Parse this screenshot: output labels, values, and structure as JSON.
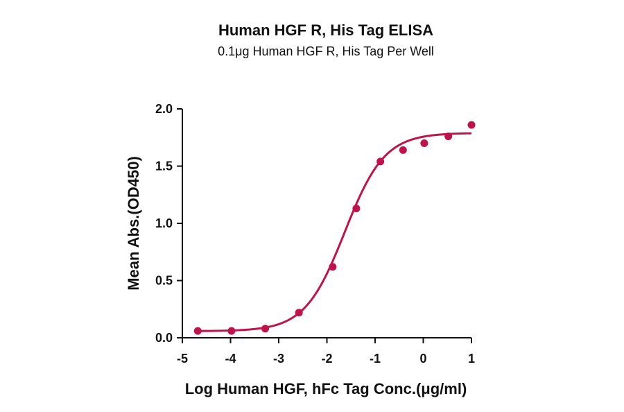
{
  "chart_data": {
    "type": "scatter",
    "title": "Human HGF R, His Tag ELISA",
    "subtitle": "0.1μg Human HGF R, His Tag Per Well",
    "xlabel": "Log Human HGF, hFc Tag Conc.(μg/ml)",
    "ylabel": "Mean Abs.(OD450)",
    "xlim": [
      -5,
      1
    ],
    "ylim": [
      0,
      2.0
    ],
    "x_ticks": [
      "-5",
      "-4",
      "-3",
      "-2",
      "-1",
      "0",
      "1"
    ],
    "y_ticks": [
      "0.0",
      "0.5",
      "1.0",
      "1.5",
      "2.0"
    ],
    "grid": false,
    "color": "#c0134a",
    "x": [
      -4.68,
      -3.98,
      -3.28,
      -2.58,
      -1.88,
      -1.39,
      -0.89,
      -0.42,
      0.02,
      0.52,
      1.0
    ],
    "y": [
      0.06,
      0.06,
      0.08,
      0.22,
      0.62,
      1.13,
      1.54,
      1.64,
      1.7,
      1.76,
      1.86
    ],
    "fit": {
      "model": "4PL",
      "bottom": 0.058,
      "top": 1.79,
      "logEC50": -1.63,
      "hill": 1.05
    }
  }
}
